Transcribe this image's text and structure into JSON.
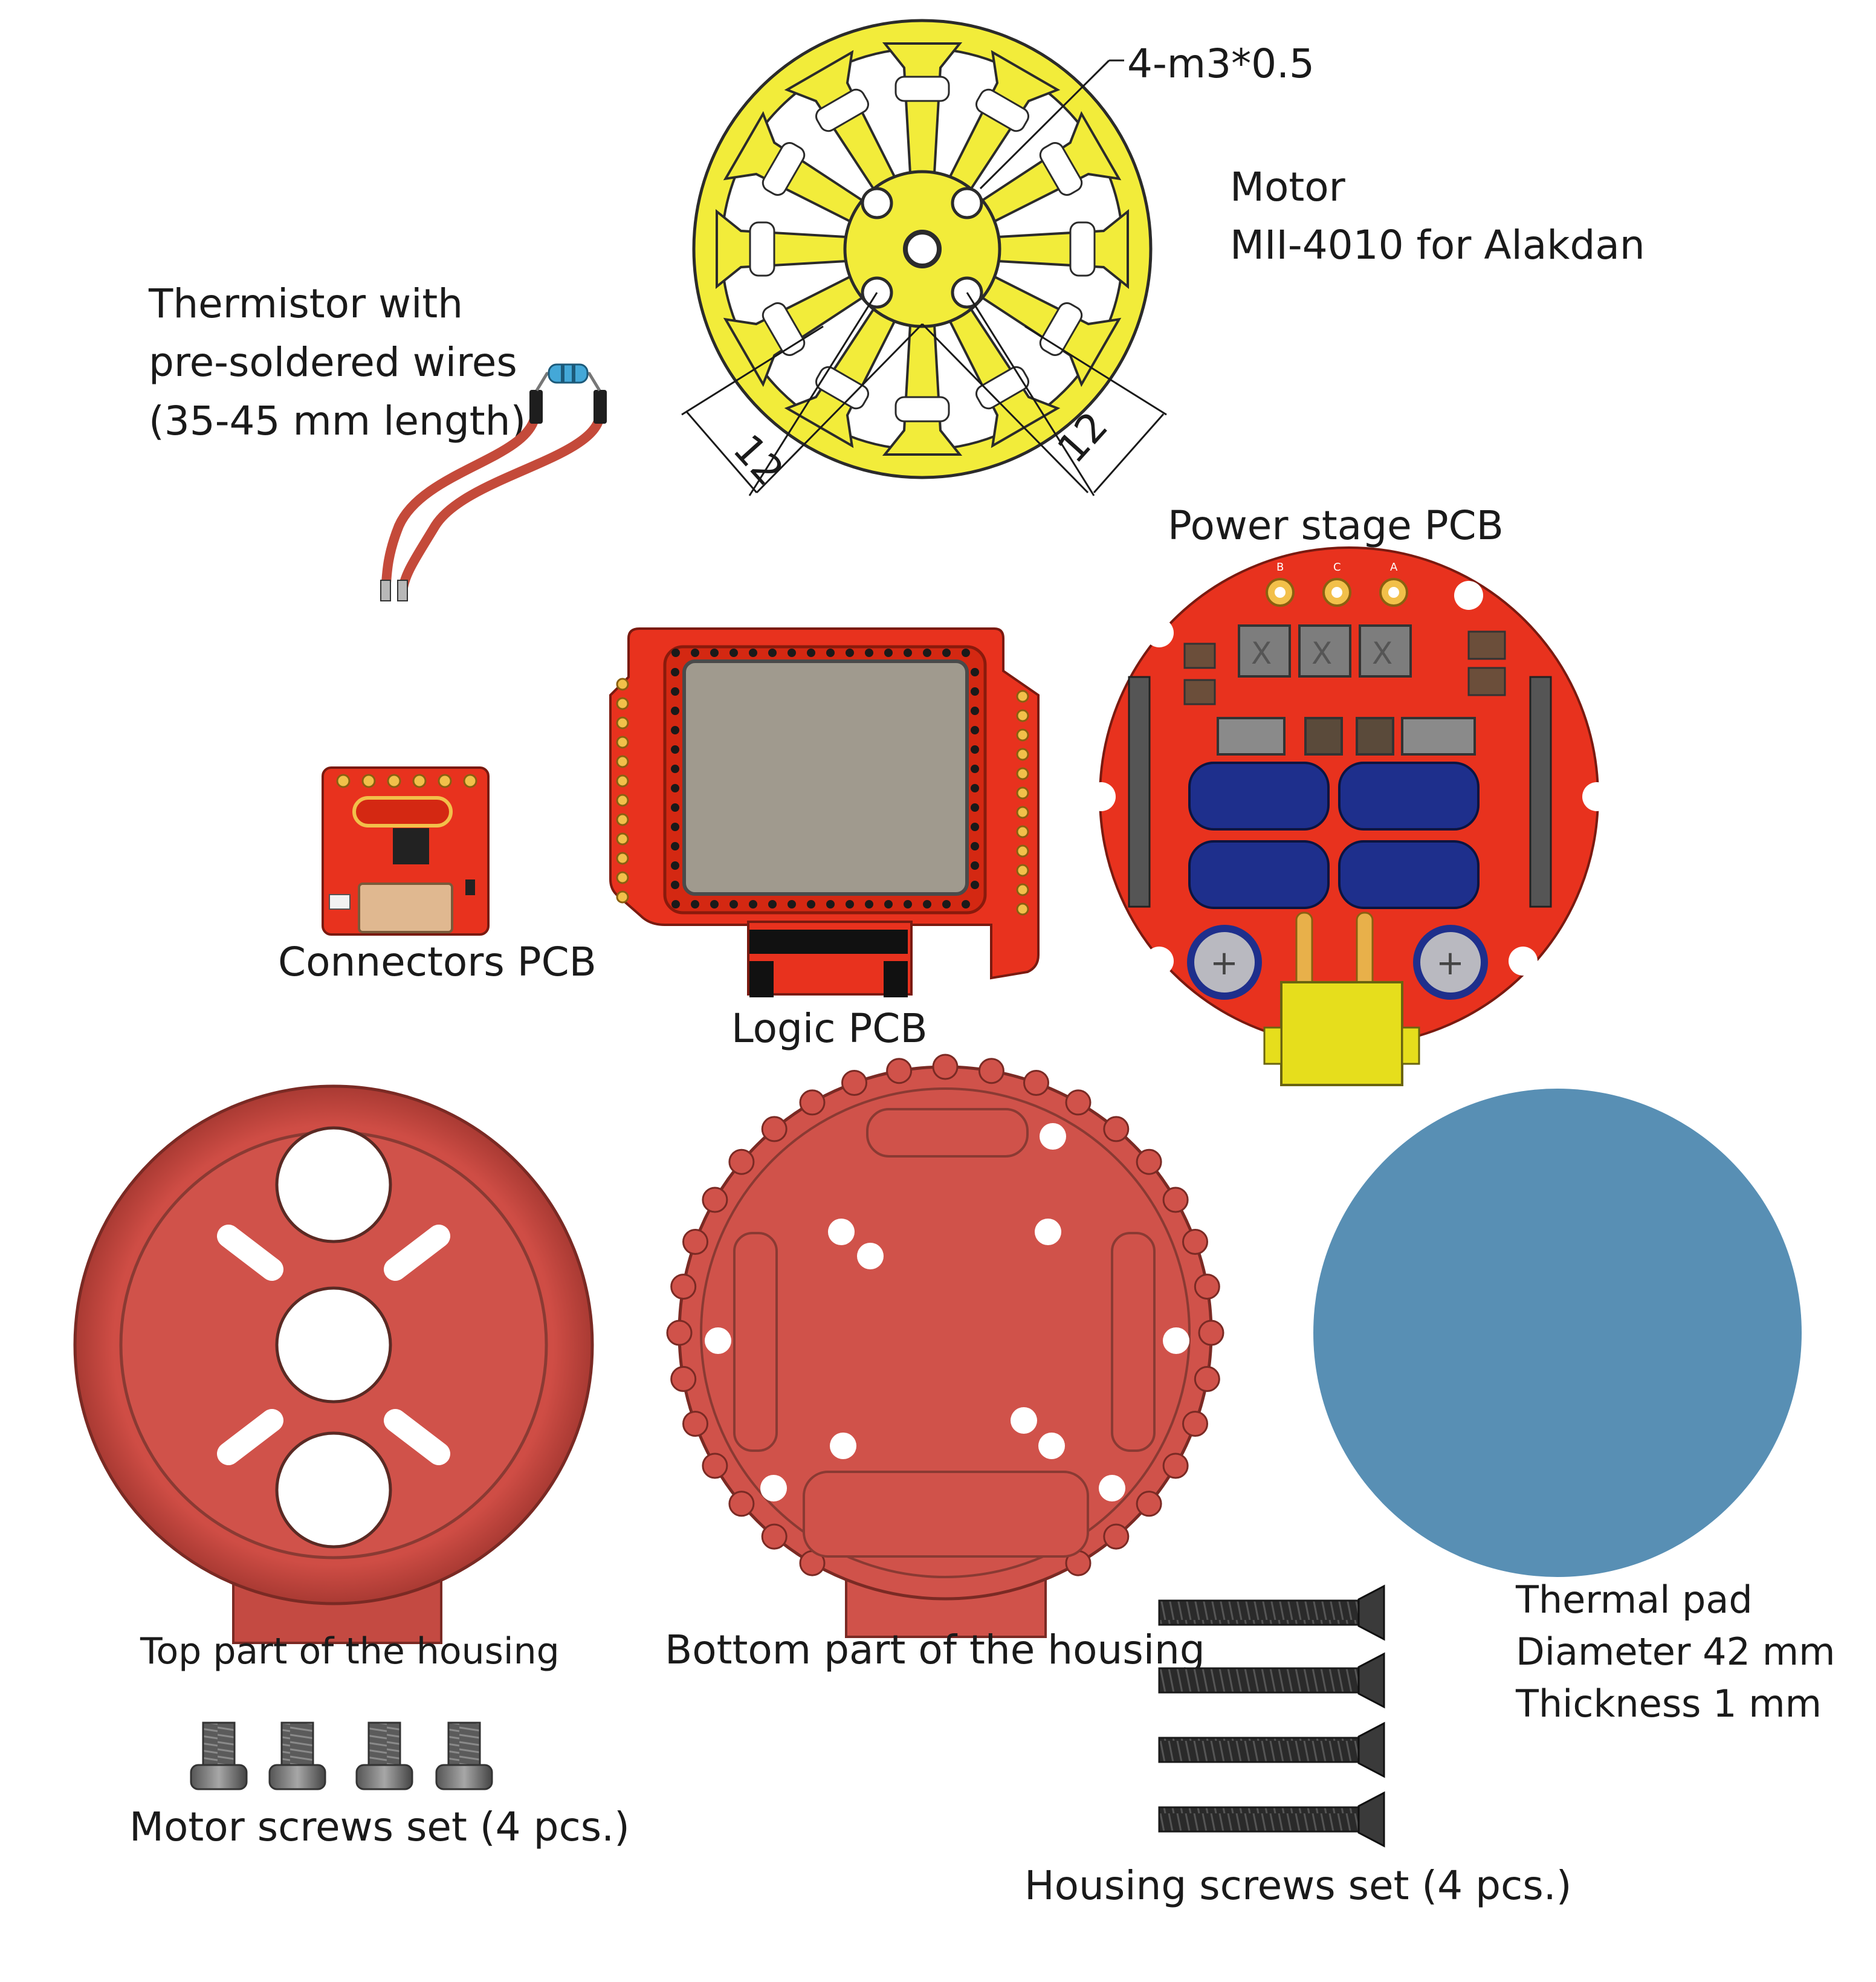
{
  "labels": {
    "motor_title": "Motor",
    "motor_model": "MII-4010 for Alakdan",
    "motor_thread": "4-m3*0.5",
    "dim_left": "12",
    "dim_right": "12",
    "thermistor_line1": "Thermistor with",
    "thermistor_line2": "pre-soldered wires",
    "thermistor_line3": "(35-45 mm length)",
    "power_pcb": "Power stage PCB",
    "power_pcb_phase_b": "B",
    "power_pcb_phase_c": "C",
    "power_pcb_phase_a": "A",
    "connectors_pcb": "Connectors PCB",
    "logic_pcb": "Logic PCB",
    "top_housing": "Top part of the housing",
    "bottom_housing": "Bottom part of the housing",
    "thermal_pad_line1": "Thermal pad",
    "thermal_pad_line2": "Diameter 42 mm",
    "thermal_pad_line3": "Thickness 1 mm",
    "motor_screws": "Motor screws set (4 pcs.)",
    "housing_screws": "Housing screws set (4 pcs.)"
  },
  "colors": {
    "motor_yellow": "#f2ec3a",
    "pcb_red": "#e8321e",
    "housing_red": "#d0524a",
    "thermal_pad_blue": "#588fb4",
    "wire_red": "#c44a3a",
    "capacitor_blue": "#1e2f8c",
    "screw_dark": "#2e2e2e"
  }
}
